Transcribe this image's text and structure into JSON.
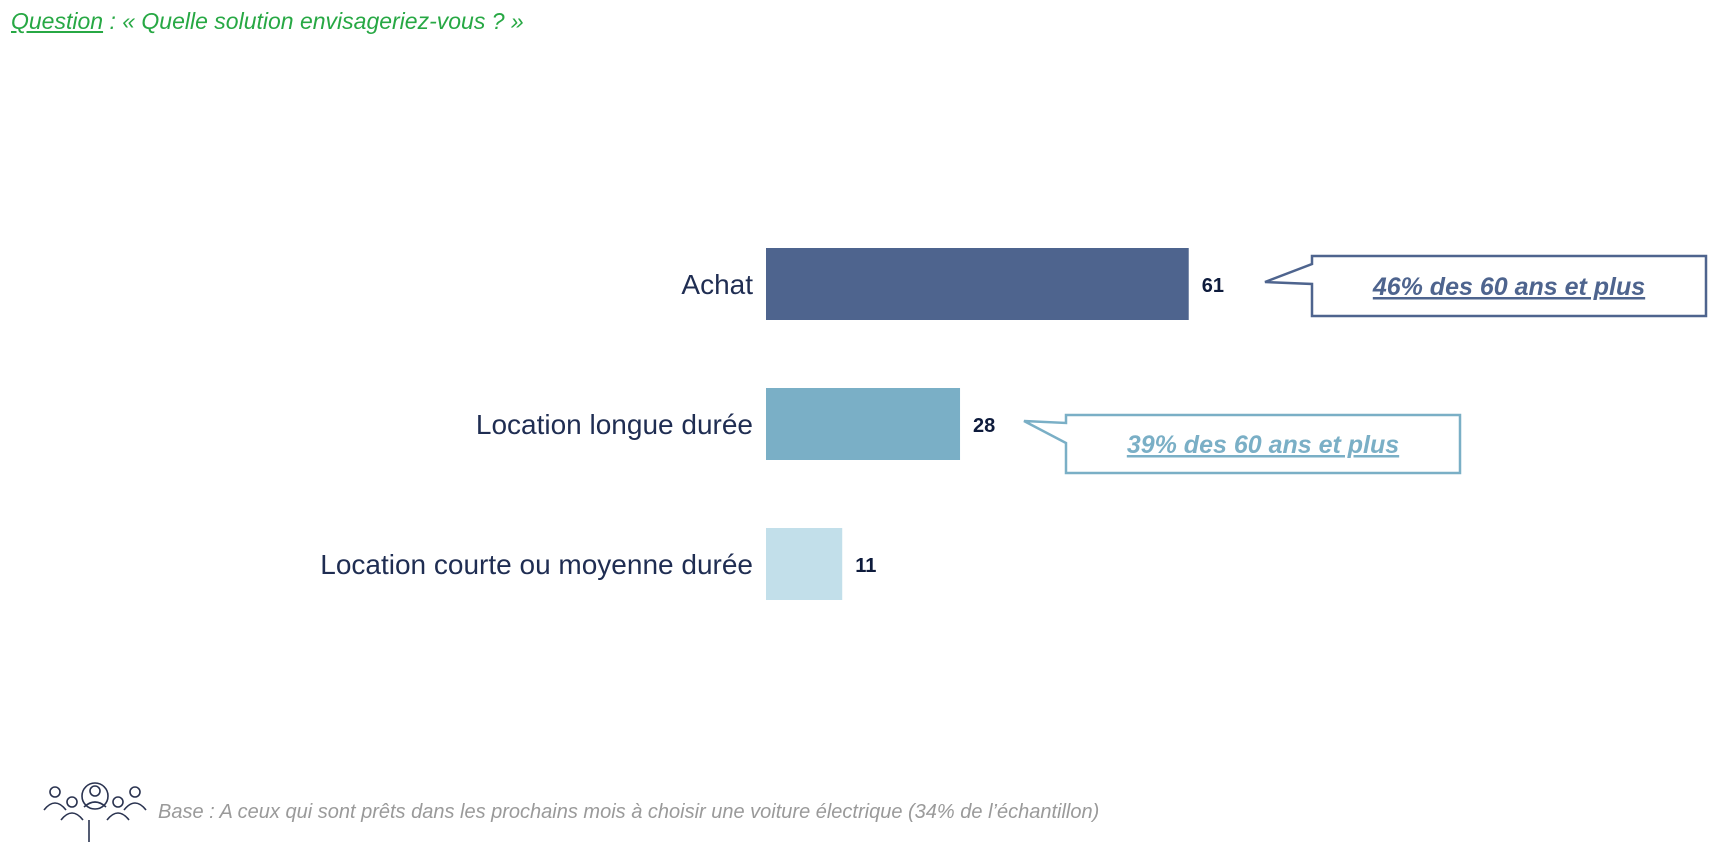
{
  "question": {
    "label": "Question",
    "text": " : « Quelle solution envisageriez-vous ? »"
  },
  "chart_data": {
    "type": "bar",
    "orientation": "horizontal",
    "title": "",
    "xlabel": "",
    "ylabel": "",
    "categories": [
      "Achat",
      "Location longue durée",
      "Location courte ou moyenne durée"
    ],
    "values": [
      61,
      28,
      11
    ],
    "value_labels": [
      "61",
      "28",
      "11"
    ],
    "colors": [
      "#4e648e",
      "#7aafc6",
      "#c2dfea"
    ],
    "grid": false,
    "legend": "none"
  },
  "callouts": [
    {
      "text": "46% des 60 ans et plus",
      "color": "#4e648e"
    },
    {
      "text": "39% des 60 ans et plus",
      "color": "#7aafc6"
    }
  ],
  "footer": {
    "icon": "people-group-icon",
    "base_text": "Base : A ceux qui sont prêts dans les prochains mois à choisir une voiture électrique (34% de l’échantillon)"
  }
}
